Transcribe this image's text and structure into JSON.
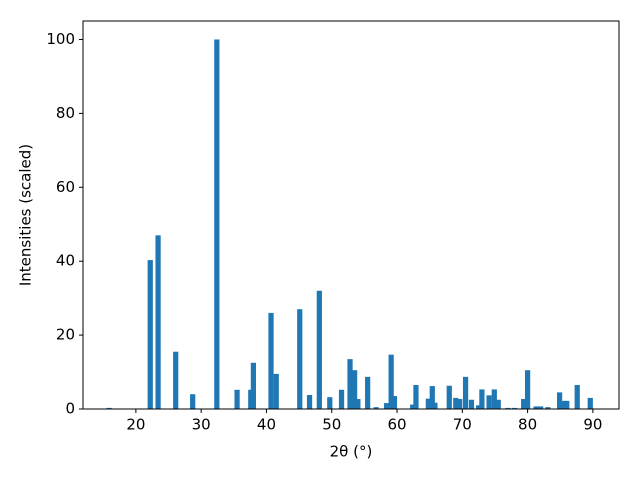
{
  "chart_data": {
    "type": "bar",
    "xlabel": "2θ (°)",
    "ylabel": "Intensities (scaled)",
    "x": [
      15.9,
      22.2,
      23.4,
      26.1,
      28.7,
      32.4,
      35.5,
      37.6,
      38.0,
      40.7,
      41.5,
      45.1,
      46.6,
      48.1,
      49.7,
      51.5,
      52.8,
      53.5,
      54.0,
      55.5,
      56.8,
      58.4,
      59.1,
      59.6,
      62.4,
      62.9,
      64.8,
      65.4,
      65.8,
      68.0,
      69.0,
      69.6,
      70.5,
      71.4,
      72.5,
      73.0,
      74.1,
      74.9,
      75.5,
      77.0,
      78.0,
      79.4,
      80.0,
      81.3,
      82.0,
      83.1,
      84.9,
      85.6,
      86.0,
      87.6,
      89.6
    ],
    "values": [
      0.3,
      40.3,
      47,
      15.5,
      4,
      100,
      5.2,
      5.2,
      12.5,
      26,
      9.5,
      27,
      3.8,
      32,
      3.2,
      5.2,
      13.5,
      10.5,
      2.7,
      8.7,
      0.5,
      1.6,
      14.7,
      3.5,
      1.2,
      6.5,
      2.8,
      6.2,
      1.7,
      6.3,
      3.0,
      2.7,
      8.7,
      2.5,
      1.0,
      5.3,
      3.7,
      5.3,
      2.5,
      0.3,
      0.3,
      2.7,
      10.5,
      0.7,
      0.7,
      0.5,
      4.5,
      2.2,
      2.2,
      6.5,
      3.0
    ],
    "color": "#1f77b4",
    "xlim": [
      11.9,
      94.0
    ],
    "ylim": [
      0,
      105
    ],
    "xticks": [
      20,
      30,
      40,
      50,
      60,
      70,
      80,
      90
    ],
    "yticks": [
      0,
      20,
      40,
      60,
      80,
      100
    ]
  }
}
